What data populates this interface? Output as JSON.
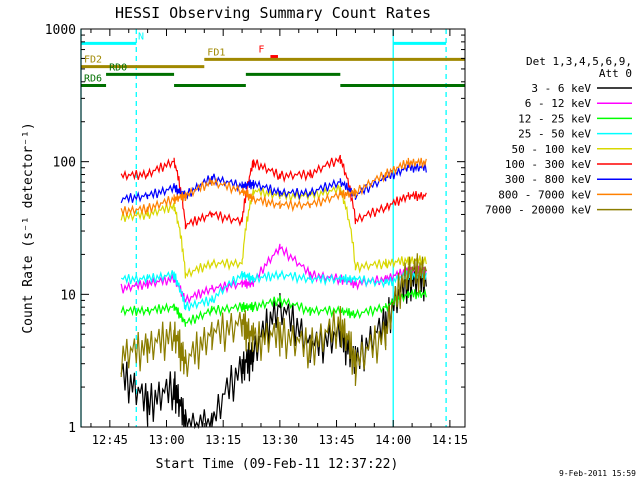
{
  "chart_data": {
    "type": "line",
    "title": "HESSI Observing Summary Count Rates",
    "xlabel": "Start Time (09-Feb-11 12:37:22)",
    "ylabel": "Count Rate (s⁻¹ detector⁻¹)",
    "yscale": "log",
    "ylim": [
      1,
      1000
    ],
    "xlim": [
      "12:37:22",
      "14:19:00"
    ],
    "x_ticks": [
      "12:45",
      "13:00",
      "13:15",
      "13:30",
      "13:45",
      "14:00",
      "14:15"
    ],
    "y_ticks": [
      "1",
      "10",
      "100",
      "1000"
    ],
    "stamp": "9-Feb-2011 15:59",
    "legend": {
      "placement": "right",
      "header": [
        "Det 1,3,4,5,6,9,",
        "Att 0"
      ],
      "entries": [
        {
          "label": "3 - 6 keV",
          "color": "#000000"
        },
        {
          "label": "6 - 12 keV",
          "color": "#ff00ff"
        },
        {
          "label": "12 - 25 keV",
          "color": "#00ff00"
        },
        {
          "label": "25 - 50 keV",
          "color": "#00ffff"
        },
        {
          "label": "50 - 100 keV",
          "color": "#d8d800"
        },
        {
          "label": "100 - 300 keV",
          "color": "#ff0000"
        },
        {
          "label": "300 - 800 keV",
          "color": "#0000ff"
        },
        {
          "label": "800 - 7000 keV",
          "color": "#ff8000"
        },
        {
          "label": "7000 - 20000 keV",
          "color": "#8b7d00"
        }
      ]
    },
    "flag_bars": [
      {
        "label": "N",
        "color": "#00ffff",
        "level": 780,
        "spans": [
          [
            "12:37:22",
            "12:52:00"
          ],
          [
            "14:00:00",
            "14:14:00"
          ]
        ]
      },
      {
        "label": "F",
        "color": "#ff0000",
        "level": 620,
        "spans": [
          [
            "13:27:30",
            "13:29:30"
          ]
        ]
      },
      {
        "label": "FD1",
        "color": "#a08800",
        "level": 590,
        "spans": [
          [
            "13:10:00",
            "14:19:00"
          ]
        ]
      },
      {
        "label": "FD2",
        "color": "#a08800",
        "level": 520,
        "spans": [
          [
            "12:37:22",
            "13:10:00"
          ]
        ]
      },
      {
        "label": "RD0",
        "color": "#007000",
        "level": 455,
        "spans": [
          [
            "12:44:00",
            "13:02:00"
          ],
          [
            "13:21:00",
            "13:46:00"
          ]
        ]
      },
      {
        "label": "RD6",
        "color": "#007000",
        "level": 375,
        "spans": [
          [
            "12:37:22",
            "12:44:00"
          ],
          [
            "13:02:00",
            "13:21:00"
          ],
          [
            "13:46:00",
            "14:19:00"
          ]
        ]
      }
    ],
    "vlines": [
      {
        "time": "12:37:22",
        "color": "#00ffff",
        "style": "solid"
      },
      {
        "time": "12:52:00",
        "color": "#00ffff",
        "style": "dashed"
      },
      {
        "time": "14:00:00",
        "color": "#00ffff",
        "style": "solid"
      },
      {
        "time": "14:14:00",
        "color": "#00ffff",
        "style": "dashed"
      }
    ],
    "x": [
      "12:48",
      "12:55",
      "13:02",
      "13:05",
      "13:12",
      "13:20",
      "13:23",
      "13:30",
      "13:38",
      "13:46",
      "13:50",
      "13:58",
      "14:04"
    ],
    "series": [
      {
        "name": "3 - 6 keV",
        "color": "#000000",
        "values": [
          2.5,
          1.5,
          2.0,
          1.0,
          1.0,
          2.8,
          3.5,
          8.0,
          4.0,
          5.0,
          3.0,
          6.0,
          13.0
        ]
      },
      {
        "name": "6 - 12 keV",
        "color": "#ff00ff",
        "values": [
          11,
          12,
          13,
          9,
          11,
          12,
          12,
          22,
          14,
          13,
          12,
          13,
          15
        ]
      },
      {
        "name": "12 - 25 keV",
        "color": "#00ff00",
        "values": [
          7.5,
          7.5,
          8,
          6,
          7.5,
          8,
          8,
          9,
          7.5,
          7.5,
          7,
          8,
          10
        ]
      },
      {
        "name": "25 - 50 keV",
        "color": "#00ffff",
        "values": [
          13,
          13,
          14,
          8,
          9,
          14,
          13,
          14,
          13,
          13,
          13,
          12,
          14
        ]
      },
      {
        "name": "50 - 100 keV",
        "color": "#d8d800",
        "values": [
          38,
          40,
          46,
          14,
          17,
          17,
          60,
          55,
          55,
          62,
          16,
          17,
          18
        ]
      },
      {
        "name": "100 - 300 keV",
        "color": "#ff0000",
        "values": [
          78,
          80,
          100,
          33,
          40,
          35,
          98,
          78,
          80,
          105,
          36,
          45,
          55
        ]
      },
      {
        "name": "300 - 800 keV",
        "color": "#0000ff",
        "values": [
          52,
          55,
          63,
          55,
          75,
          65,
          68,
          58,
          58,
          70,
          55,
          75,
          90
        ]
      },
      {
        "name": "800 - 7000 keV",
        "color": "#ff8000",
        "values": [
          42,
          44,
          52,
          55,
          70,
          60,
          52,
          47,
          47,
          56,
          58,
          80,
          98
        ]
      },
      {
        "name": "7000 - 20000 keV",
        "color": "#8b7d00",
        "values": [
          3.5,
          4.0,
          5.0,
          3.0,
          5.0,
          6.0,
          4.5,
          5.0,
          4.0,
          6.0,
          3.0,
          5.0,
          15.0
        ]
      }
    ]
  }
}
